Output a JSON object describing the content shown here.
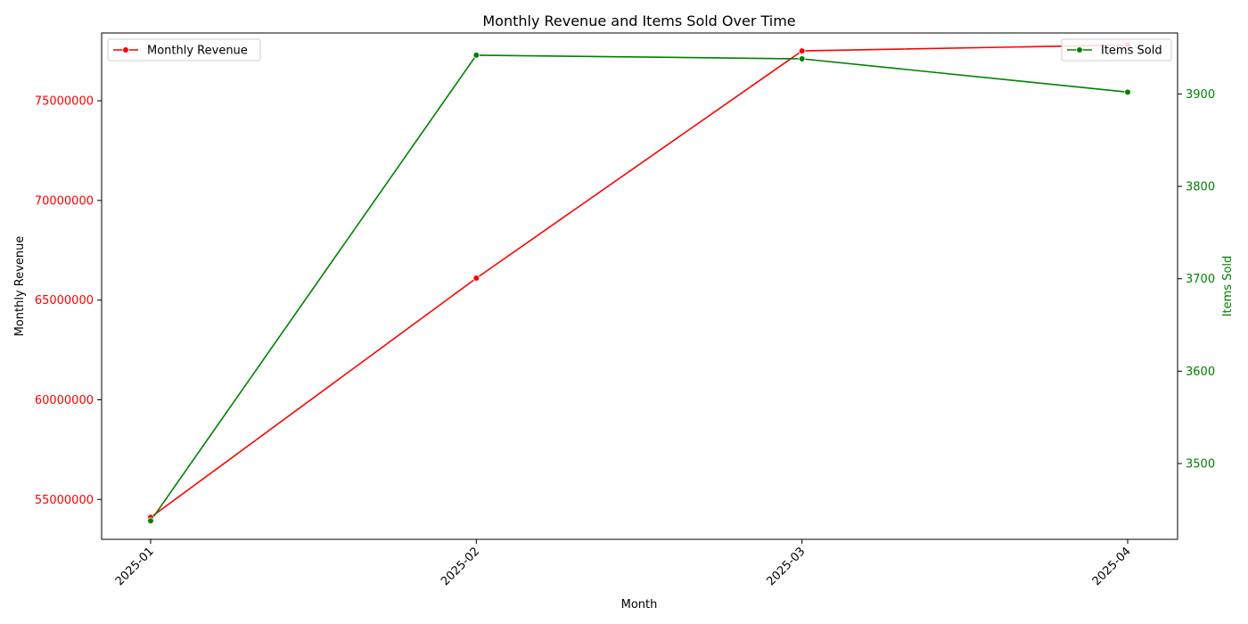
{
  "chart_data": {
    "type": "line",
    "title": "Monthly Revenue and Items Sold Over Time",
    "xlabel": "Month",
    "ylabel_left": "Monthly Revenue",
    "ylabel_right": "Items Sold",
    "categories": [
      "2025-01",
      "2025-02",
      "2025-03",
      "2025-04"
    ],
    "left_axis": {
      "ylim": [
        53000000,
        78400000
      ],
      "ticks": [
        55000000,
        60000000,
        65000000,
        70000000,
        75000000
      ],
      "tick_labels": [
        "55000000",
        "60000000",
        "65000000",
        "70000000",
        "75000000"
      ],
      "color": "#ff0000"
    },
    "right_axis": {
      "ylim": [
        3418,
        3966
      ],
      "ticks": [
        3500,
        3600,
        3700,
        3800,
        3900
      ],
      "tick_labels": [
        "3500",
        "3600",
        "3700",
        "3800",
        "3900"
      ],
      "color": "#008000"
    },
    "series": [
      {
        "name": "Monthly Revenue",
        "axis": "left",
        "color": "#ff0000",
        "values": [
          54100000,
          66100000,
          77500000,
          77800000
        ]
      },
      {
        "name": "Items Sold",
        "axis": "right",
        "color": "#008000",
        "values": [
          3438,
          3942,
          3938,
          3902
        ]
      }
    ],
    "legends": [
      {
        "series": "Monthly Revenue",
        "placement": "upper-left"
      },
      {
        "series": "Items Sold",
        "placement": "upper-right"
      }
    ],
    "grid": false
  }
}
